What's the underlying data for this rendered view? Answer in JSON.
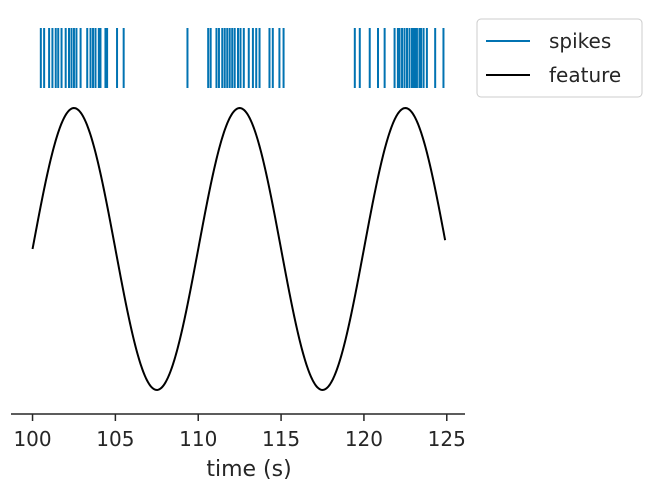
{
  "chart_data": {
    "type": "line",
    "title": "",
    "xlabel": "time (s)",
    "ylabel": "",
    "xlim": [
      98.7,
      126.1
    ],
    "x_ticks": [
      100,
      105,
      110,
      115,
      120,
      125
    ],
    "x_tick_labels": [
      "100",
      "105",
      "110",
      "115",
      "120",
      "125"
    ],
    "grid": false,
    "legend_position": "outside-top-right",
    "series": [
      {
        "name": "spikes",
        "kind": "event-raster",
        "color": "#0173b2",
        "x": [
          100.5,
          100.7,
          101.0,
          101.2,
          101.4,
          101.55,
          101.75,
          102.0,
          102.2,
          102.35,
          102.5,
          102.65,
          102.9,
          103.3,
          103.5,
          103.65,
          103.8,
          104.0,
          104.1,
          104.4,
          104.5,
          105.1,
          105.5,
          109.35,
          110.6,
          110.75,
          111.1,
          111.25,
          111.45,
          111.6,
          111.75,
          111.9,
          112.05,
          112.2,
          112.4,
          112.55,
          112.75,
          113.05,
          113.3,
          113.5,
          113.7,
          114.3,
          114.5,
          114.9,
          115.15,
          119.45,
          119.75,
          120.35,
          120.85,
          121.25,
          121.85,
          122.05,
          122.15,
          122.3,
          122.45,
          122.6,
          122.75,
          122.9,
          123.0,
          123.1,
          123.2,
          123.35,
          123.45,
          123.6,
          123.8,
          124.3,
          124.8
        ]
      },
      {
        "name": "feature",
        "kind": "sine",
        "color": "#000000",
        "x_start": 100,
        "x_end": 124.9,
        "amplitude": 1,
        "period": 10,
        "phase_shift": 0,
        "ylim": [
          -1.05,
          1.05
        ]
      }
    ]
  }
}
